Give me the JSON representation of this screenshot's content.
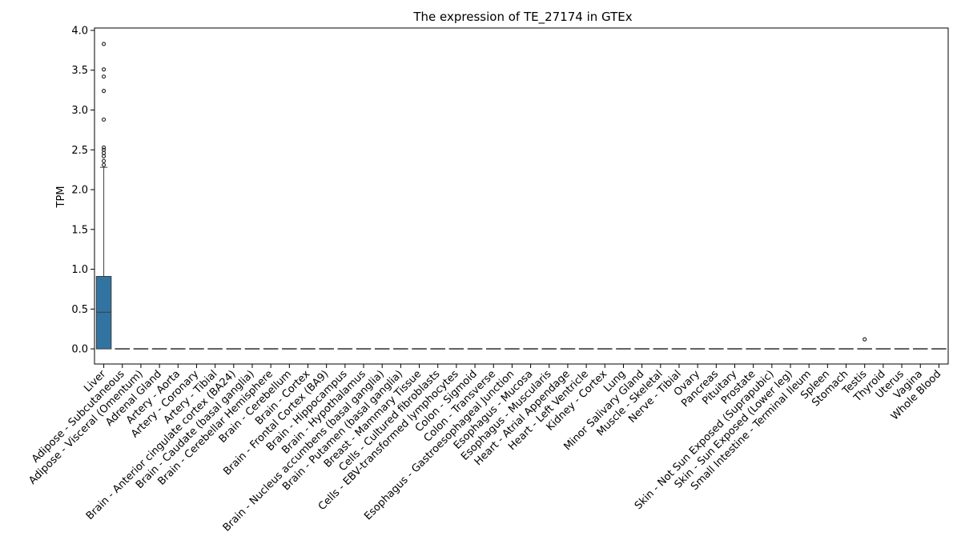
{
  "chart_data": {
    "type": "box",
    "title": "The expression of TE_27174 in GTEx",
    "xlabel": "",
    "ylabel": "TPM",
    "ylim": [
      -0.19,
      4.03
    ],
    "yticks": [
      "0.0",
      "0.5",
      "1.0",
      "1.5",
      "2.0",
      "2.5",
      "3.0",
      "3.5",
      "4.0"
    ],
    "grid": false,
    "box_color": "#3274a1",
    "categories": [
      "Liver",
      "Adipose - Subcutaneous",
      "Adipose - Visceral (Omentum)",
      "Adrenal Gland",
      "Artery - Aorta",
      "Artery - Coronary",
      "Artery - Tibial",
      "Brain - Anterior cingulate cortex (BA24)",
      "Brain - Caudate (basal ganglia)",
      "Brain - Cerebellar Hemisphere",
      "Brain - Cerebellum",
      "Brain - Cortex",
      "Brain - Frontal Cortex (BA9)",
      "Brain - Hippocampus",
      "Brain - Hypothalamus",
      "Brain - Nucleus accumbens (basal ganglia)",
      "Brain - Putamen (basal ganglia)",
      "Breast - Mammary Tissue",
      "Cells - Cultured fibroblasts",
      "Cells - EBV-transformed lymphocytes",
      "Colon - Sigmoid",
      "Colon - Transverse",
      "Esophagus - Gastroesophageal Junction",
      "Esophagus - Mucosa",
      "Esophagus - Muscularis",
      "Heart - Atrial Appendage",
      "Heart - Left Ventricle",
      "Kidney - Cortex",
      "Lung",
      "Minor Salivary Gland",
      "Muscle - Skeletal",
      "Nerve - Tibial",
      "Ovary",
      "Pancreas",
      "Pituitary",
      "Prostate",
      "Skin - Not Sun Exposed (Suprapubic)",
      "Skin - Sun Exposed (Lower leg)",
      "Small Intestine - Terminal Ileum",
      "Spleen",
      "Stomach",
      "Testis",
      "Thyroid",
      "Uterus",
      "Vagina",
      "Whole Blood"
    ],
    "boxes": [
      {
        "q1": 0.0,
        "median": 0.46,
        "q3": 0.91,
        "whisker_low": 0.0,
        "whisker_high": 2.28,
        "outliers": [
          2.31,
          2.36,
          2.42,
          2.46,
          2.5,
          2.53,
          2.88,
          3.24,
          3.42,
          3.51,
          3.83
        ]
      },
      {
        "q1": 0,
        "median": 0,
        "q3": 0,
        "whisker_low": 0,
        "whisker_high": 0,
        "outliers": []
      },
      {
        "q1": 0,
        "median": 0,
        "q3": 0,
        "whisker_low": 0,
        "whisker_high": 0,
        "outliers": []
      },
      {
        "q1": 0,
        "median": 0,
        "q3": 0,
        "whisker_low": 0,
        "whisker_high": 0,
        "outliers": []
      },
      {
        "q1": 0,
        "median": 0,
        "q3": 0,
        "whisker_low": 0,
        "whisker_high": 0,
        "outliers": []
      },
      {
        "q1": 0,
        "median": 0,
        "q3": 0,
        "whisker_low": 0,
        "whisker_high": 0,
        "outliers": []
      },
      {
        "q1": 0,
        "median": 0,
        "q3": 0,
        "whisker_low": 0,
        "whisker_high": 0,
        "outliers": []
      },
      {
        "q1": 0,
        "median": 0,
        "q3": 0,
        "whisker_low": 0,
        "whisker_high": 0,
        "outliers": []
      },
      {
        "q1": 0,
        "median": 0,
        "q3": 0,
        "whisker_low": 0,
        "whisker_high": 0,
        "outliers": []
      },
      {
        "q1": 0,
        "median": 0,
        "q3": 0,
        "whisker_low": 0,
        "whisker_high": 0,
        "outliers": []
      },
      {
        "q1": 0,
        "median": 0,
        "q3": 0,
        "whisker_low": 0,
        "whisker_high": 0,
        "outliers": []
      },
      {
        "q1": 0,
        "median": 0,
        "q3": 0,
        "whisker_low": 0,
        "whisker_high": 0,
        "outliers": []
      },
      {
        "q1": 0,
        "median": 0,
        "q3": 0,
        "whisker_low": 0,
        "whisker_high": 0,
        "outliers": []
      },
      {
        "q1": 0,
        "median": 0,
        "q3": 0,
        "whisker_low": 0,
        "whisker_high": 0,
        "outliers": []
      },
      {
        "q1": 0,
        "median": 0,
        "q3": 0,
        "whisker_low": 0,
        "whisker_high": 0,
        "outliers": []
      },
      {
        "q1": 0,
        "median": 0,
        "q3": 0,
        "whisker_low": 0,
        "whisker_high": 0,
        "outliers": []
      },
      {
        "q1": 0,
        "median": 0,
        "q3": 0,
        "whisker_low": 0,
        "whisker_high": 0,
        "outliers": []
      },
      {
        "q1": 0,
        "median": 0,
        "q3": 0,
        "whisker_low": 0,
        "whisker_high": 0,
        "outliers": []
      },
      {
        "q1": 0,
        "median": 0,
        "q3": 0,
        "whisker_low": 0,
        "whisker_high": 0,
        "outliers": []
      },
      {
        "q1": 0,
        "median": 0,
        "q3": 0,
        "whisker_low": 0,
        "whisker_high": 0,
        "outliers": []
      },
      {
        "q1": 0,
        "median": 0,
        "q3": 0,
        "whisker_low": 0,
        "whisker_high": 0,
        "outliers": []
      },
      {
        "q1": 0,
        "median": 0,
        "q3": 0,
        "whisker_low": 0,
        "whisker_high": 0,
        "outliers": []
      },
      {
        "q1": 0,
        "median": 0,
        "q3": 0,
        "whisker_low": 0,
        "whisker_high": 0,
        "outliers": []
      },
      {
        "q1": 0,
        "median": 0,
        "q3": 0,
        "whisker_low": 0,
        "whisker_high": 0,
        "outliers": []
      },
      {
        "q1": 0,
        "median": 0,
        "q3": 0,
        "whisker_low": 0,
        "whisker_high": 0,
        "outliers": []
      },
      {
        "q1": 0,
        "median": 0,
        "q3": 0,
        "whisker_low": 0,
        "whisker_high": 0,
        "outliers": []
      },
      {
        "q1": 0,
        "median": 0,
        "q3": 0,
        "whisker_low": 0,
        "whisker_high": 0,
        "outliers": []
      },
      {
        "q1": 0,
        "median": 0,
        "q3": 0,
        "whisker_low": 0,
        "whisker_high": 0,
        "outliers": []
      },
      {
        "q1": 0,
        "median": 0,
        "q3": 0,
        "whisker_low": 0,
        "whisker_high": 0,
        "outliers": []
      },
      {
        "q1": 0,
        "median": 0,
        "q3": 0,
        "whisker_low": 0,
        "whisker_high": 0,
        "outliers": []
      },
      {
        "q1": 0,
        "median": 0,
        "q3": 0,
        "whisker_low": 0,
        "whisker_high": 0,
        "outliers": []
      },
      {
        "q1": 0,
        "median": 0,
        "q3": 0,
        "whisker_low": 0,
        "whisker_high": 0,
        "outliers": []
      },
      {
        "q1": 0,
        "median": 0,
        "q3": 0,
        "whisker_low": 0,
        "whisker_high": 0,
        "outliers": []
      },
      {
        "q1": 0,
        "median": 0,
        "q3": 0,
        "whisker_low": 0,
        "whisker_high": 0,
        "outliers": []
      },
      {
        "q1": 0,
        "median": 0,
        "q3": 0,
        "whisker_low": 0,
        "whisker_high": 0,
        "outliers": []
      },
      {
        "q1": 0,
        "median": 0,
        "q3": 0,
        "whisker_low": 0,
        "whisker_high": 0,
        "outliers": []
      },
      {
        "q1": 0,
        "median": 0,
        "q3": 0,
        "whisker_low": 0,
        "whisker_high": 0,
        "outliers": []
      },
      {
        "q1": 0,
        "median": 0,
        "q3": 0,
        "whisker_low": 0,
        "whisker_high": 0,
        "outliers": []
      },
      {
        "q1": 0,
        "median": 0,
        "q3": 0,
        "whisker_low": 0,
        "whisker_high": 0,
        "outliers": []
      },
      {
        "q1": 0,
        "median": 0,
        "q3": 0,
        "whisker_low": 0,
        "whisker_high": 0,
        "outliers": []
      },
      {
        "q1": 0,
        "median": 0,
        "q3": 0,
        "whisker_low": 0,
        "whisker_high": 0,
        "outliers": []
      },
      {
        "q1": 0,
        "median": 0,
        "q3": 0,
        "whisker_low": 0,
        "whisker_high": 0,
        "outliers": [
          0.12
        ]
      },
      {
        "q1": 0,
        "median": 0,
        "q3": 0,
        "whisker_low": 0,
        "whisker_high": 0,
        "outliers": []
      },
      {
        "q1": 0,
        "median": 0,
        "q3": 0,
        "whisker_low": 0,
        "whisker_high": 0,
        "outliers": []
      },
      {
        "q1": 0,
        "median": 0,
        "q3": 0,
        "whisker_low": 0,
        "whisker_high": 0,
        "outliers": []
      },
      {
        "q1": 0,
        "median": 0,
        "q3": 0,
        "whisker_low": 0,
        "whisker_high": 0,
        "outliers": []
      }
    ]
  }
}
